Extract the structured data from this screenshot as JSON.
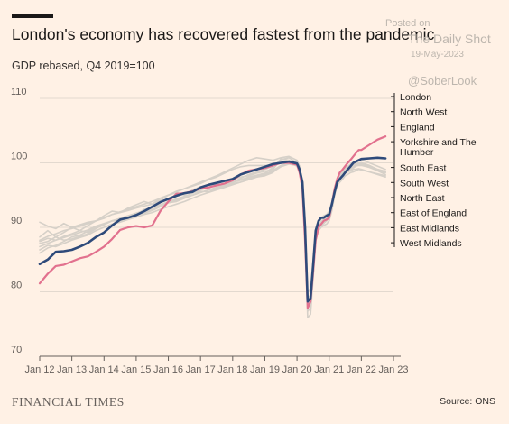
{
  "header": {
    "title": "London's economy has recovered fastest from the pandemic",
    "subtitle": "GDP rebased, Q4 2019=100"
  },
  "watermark": {
    "posted": "Posted on",
    "name": "The Daily Shot",
    "date": "19-May-2023",
    "handle": "@SoberLook"
  },
  "footer": {
    "brand": "FINANCIAL TIMES",
    "source": "Source: ONS"
  },
  "colors": {
    "london": "#2E4A7A",
    "england": "#E2718E",
    "other_regions": "#D6D0C8",
    "gridline": "#E3D9CF",
    "background": "#FFF1E5"
  },
  "chart_data": {
    "type": "line",
    "title": "London's economy has recovered fastest from the pandemic",
    "subtitle": "GDP rebased, Q4 2019=100",
    "ylim": [
      70,
      110
    ],
    "yticks": [
      70,
      80,
      90,
      100,
      110
    ],
    "xlim": [
      2012,
      2023
    ],
    "xticks": [
      "Jan 12",
      "Jan 13",
      "Jan 14",
      "Jan 15",
      "Jan 16",
      "Jan 17",
      "Jan 18",
      "Jan 19",
      "Jan 20",
      "Jan 21",
      "Jan 22",
      "Jan 23"
    ],
    "grid": true,
    "legend_position": "right",
    "legend": [
      "London",
      "North West",
      "England",
      "Yorkshire and The Humber",
      "South East",
      "South West",
      "North East",
      "East of England",
      "East Midlands",
      "West Midlands"
    ],
    "x": [
      2012.0,
      2012.25,
      2012.5,
      2012.75,
      2013.0,
      2013.25,
      2013.5,
      2013.75,
      2014.0,
      2014.25,
      2014.5,
      2014.75,
      2015.0,
      2015.25,
      2015.5,
      2015.75,
      2016.0,
      2016.25,
      2016.5,
      2016.75,
      2017.0,
      2017.25,
      2017.5,
      2017.75,
      2018.0,
      2018.25,
      2018.5,
      2018.75,
      2019.0,
      2019.25,
      2019.5,
      2019.75,
      2020.0,
      2020.08,
      2020.17,
      2020.25,
      2020.33,
      2020.42,
      2020.5,
      2020.58,
      2020.67,
      2020.75,
      2020.83,
      2020.92,
      2021.0,
      2021.08,
      2021.17,
      2021.25,
      2021.33,
      2021.42,
      2021.5,
      2021.58,
      2021.67,
      2021.75,
      2021.83,
      2021.92,
      2022.0,
      2022.25,
      2022.5,
      2022.75
    ],
    "series": [
      {
        "name": "London",
        "highlight": "primary",
        "values": [
          84.3,
          85.0,
          86.2,
          86.3,
          86.5,
          87.0,
          87.6,
          88.5,
          89.2,
          90.3,
          91.2,
          91.5,
          91.9,
          92.5,
          93.2,
          93.9,
          94.4,
          94.9,
          95.3,
          95.5,
          96.2,
          96.6,
          96.9,
          97.2,
          97.5,
          98.2,
          98.6,
          99.0,
          99.4,
          99.8,
          100.0,
          100.2,
          99.9,
          99.0,
          97.0,
          90.0,
          78.5,
          79.0,
          84.0,
          89.5,
          91.0,
          91.5,
          91.5,
          91.8,
          92.0,
          93.5,
          95.5,
          97.0,
          97.5,
          98.0,
          98.5,
          99.0,
          99.5,
          100.0,
          100.2,
          100.4,
          100.6,
          100.7,
          100.8,
          100.7
        ]
      },
      {
        "name": "England",
        "highlight": "secondary",
        "values": [
          81.3,
          82.8,
          84.0,
          84.2,
          84.7,
          85.2,
          85.5,
          86.2,
          87.0,
          88.2,
          89.6,
          90.0,
          90.2,
          90.0,
          90.3,
          92.5,
          94.0,
          95.2,
          95.3,
          95.6,
          96.0,
          96.2,
          96.5,
          96.8,
          97.3,
          98.2,
          98.8,
          99.0,
          99.2,
          99.6,
          100.0,
          100.0,
          99.7,
          98.5,
          96.0,
          88.0,
          77.5,
          78.5,
          83.0,
          88.0,
          90.0,
          90.5,
          91.0,
          91.2,
          91.5,
          93.5,
          96.0,
          97.5,
          98.5,
          99.0,
          99.5,
          100.0,
          100.5,
          101.0,
          101.5,
          102.0,
          102.0,
          102.8,
          103.6,
          104.1
        ]
      },
      {
        "name": "North West",
        "values": [
          90.8,
          90.2,
          89.8,
          90.6,
          90.0,
          89.5,
          90.3,
          91.0,
          91.8,
          92.5,
          92.3,
          93.0,
          93.5,
          94.0,
          93.6,
          94.2,
          95.0,
          95.4,
          95.0,
          95.8,
          96.3,
          96.0,
          96.8,
          97.2,
          97.5,
          97.8,
          98.0,
          98.4,
          98.7,
          99.0,
          100.5,
          100.8,
          100.0,
          99.5,
          97.0,
          91.0,
          80.0,
          80.5,
          85.0,
          89.5,
          91.0,
          91.5,
          91.8,
          92.0,
          92.5,
          94.0,
          96.0,
          97.5,
          98.0,
          98.5,
          99.0,
          99.2,
          99.5,
          99.8,
          100.0,
          100.0,
          99.8,
          99.5,
          99.0,
          98.5
        ]
      },
      {
        "name": "Yorkshire and The Humber",
        "values": [
          87.5,
          87.8,
          88.5,
          88.0,
          88.2,
          88.6,
          89.0,
          89.8,
          90.5,
          91.0,
          91.4,
          91.8,
          92.0,
          92.4,
          92.8,
          93.5,
          94.0,
          94.4,
          94.8,
          95.3,
          95.8,
          96.2,
          96.5,
          96.8,
          97.0,
          97.4,
          97.8,
          98.1,
          98.4,
          99.3,
          100.6,
          100.4,
          99.8,
          99.0,
          96.5,
          89.5,
          77.0,
          77.5,
          82.5,
          88.5,
          90.0,
          90.5,
          90.8,
          91.0,
          91.5,
          93.0,
          95.5,
          96.5,
          97.0,
          97.5,
          98.0,
          98.2,
          98.5,
          98.6,
          98.8,
          99.0,
          98.9,
          98.6,
          98.3,
          98.0
        ]
      },
      {
        "name": "South East",
        "values": [
          86.0,
          86.8,
          87.2,
          87.8,
          88.5,
          88.8,
          89.4,
          90.0,
          90.4,
          91.0,
          91.2,
          91.5,
          92.0,
          92.8,
          93.0,
          93.5,
          93.8,
          94.0,
          94.5,
          95.0,
          95.6,
          95.5,
          96.0,
          96.4,
          96.8,
          97.0,
          97.4,
          97.8,
          98.0,
          98.5,
          99.6,
          100.0,
          99.5,
          98.5,
          96.0,
          88.5,
          76.0,
          76.5,
          82.0,
          88.0,
          89.5,
          90.0,
          90.3,
          90.5,
          91.0,
          92.5,
          95.0,
          96.5,
          97.5,
          98.0,
          98.5,
          98.6,
          98.8,
          99.0,
          99.0,
          99.1,
          99.0,
          98.6,
          98.2,
          97.8
        ]
      },
      {
        "name": "South West",
        "values": [
          88.5,
          89.5,
          88.5,
          89.2,
          90.0,
          90.4,
          90.8,
          91.0,
          91.4,
          92.0,
          92.3,
          92.6,
          93.0,
          93.3,
          93.6,
          94.5,
          95.0,
          95.6,
          96.0,
          96.4,
          96.8,
          97.4,
          97.8,
          98.4,
          99.0,
          99.4,
          99.6,
          99.6,
          99.6,
          99.6,
          100.2,
          100.3,
          99.8,
          99.0,
          96.5,
          90.0,
          78.0,
          78.5,
          83.5,
          89.0,
          90.5,
          91.0,
          91.2,
          91.5,
          92.0,
          93.8,
          96.2,
          97.2,
          97.7,
          98.2,
          98.6,
          99.0,
          99.2,
          99.5,
          99.6,
          99.8,
          100.0,
          99.6,
          98.8,
          98.2
        ]
      },
      {
        "name": "North East",
        "values": [
          87.8,
          88.3,
          88.0,
          88.6,
          89.0,
          89.5,
          89.2,
          90.0,
          90.5,
          91.0,
          91.0,
          91.5,
          92.0,
          92.2,
          92.6,
          93.2,
          93.8,
          94.2,
          94.6,
          95.0,
          95.4,
          95.8,
          96.1,
          96.5,
          97.0,
          97.6,
          98.2,
          98.6,
          99.0,
          99.5,
          100.0,
          100.4,
          100.0,
          99.2,
          97.0,
          90.5,
          79.0,
          79.5,
          84.0,
          89.0,
          90.5,
          91.0,
          91.3,
          91.6,
          92.0,
          93.5,
          95.8,
          97.0,
          97.5,
          98.0,
          98.5,
          98.8,
          99.0,
          99.2,
          99.5,
          99.6,
          99.6,
          99.3,
          98.8,
          98.5
        ]
      },
      {
        "name": "East of England",
        "values": [
          86.5,
          87.2,
          87.0,
          87.5,
          88.0,
          88.4,
          88.8,
          89.5,
          90.0,
          90.5,
          90.8,
          91.2,
          91.6,
          92.0,
          92.3,
          92.8,
          93.2,
          93.6,
          94.0,
          94.5,
          95.0,
          95.4,
          95.8,
          96.2,
          96.6,
          97.0,
          97.4,
          97.8,
          98.2,
          98.6,
          99.4,
          99.8,
          99.6,
          99.0,
          97.0,
          90.0,
          78.5,
          79.0,
          83.5,
          88.5,
          90.0,
          90.5,
          90.8,
          91.0,
          91.5,
          93.0,
          95.5,
          97.0,
          97.8,
          98.3,
          98.8,
          99.0,
          99.2,
          99.4,
          99.6,
          99.7,
          99.7,
          99.3,
          99.0,
          98.7
        ]
      },
      {
        "name": "East Midlands",
        "values": [
          87.0,
          87.5,
          88.0,
          88.4,
          88.8,
          89.2,
          89.6,
          90.2,
          90.6,
          91.0,
          91.4,
          91.8,
          92.2,
          92.6,
          93.0,
          93.4,
          93.8,
          94.2,
          94.6,
          95.0,
          95.4,
          95.8,
          96.2,
          96.6,
          97.0,
          97.3,
          97.6,
          98.0,
          98.3,
          98.8,
          99.6,
          100.0,
          99.6,
          98.8,
          96.5,
          89.0,
          77.0,
          77.5,
          82.5,
          88.0,
          89.5,
          90.2,
          90.6,
          91.0,
          91.5,
          93.0,
          95.5,
          96.8,
          97.6,
          98.2,
          98.7,
          99.0,
          99.3,
          99.5,
          99.8,
          100.0,
          100.0,
          99.6,
          99.0,
          98.6
        ]
      },
      {
        "name": "West Midlands",
        "values": [
          88.0,
          88.6,
          89.0,
          89.5,
          89.8,
          90.2,
          90.6,
          91.0,
          91.5,
          92.0,
          92.4,
          92.8,
          93.2,
          93.6,
          94.0,
          94.5,
          95.0,
          95.5,
          96.0,
          96.5,
          97.0,
          97.5,
          98.0,
          98.6,
          99.2,
          99.8,
          100.4,
          100.8,
          100.6,
          100.4,
          100.8,
          101.0,
          100.4,
          99.5,
          97.0,
          90.0,
          77.5,
          78.0,
          83.0,
          88.5,
          90.0,
          90.8,
          91.2,
          91.5,
          92.0,
          93.5,
          96.0,
          97.5,
          98.3,
          98.8,
          99.2,
          99.5,
          99.8,
          100.0,
          100.2,
          100.4,
          100.5,
          100.0,
          99.5,
          99.0
        ]
      }
    ]
  }
}
